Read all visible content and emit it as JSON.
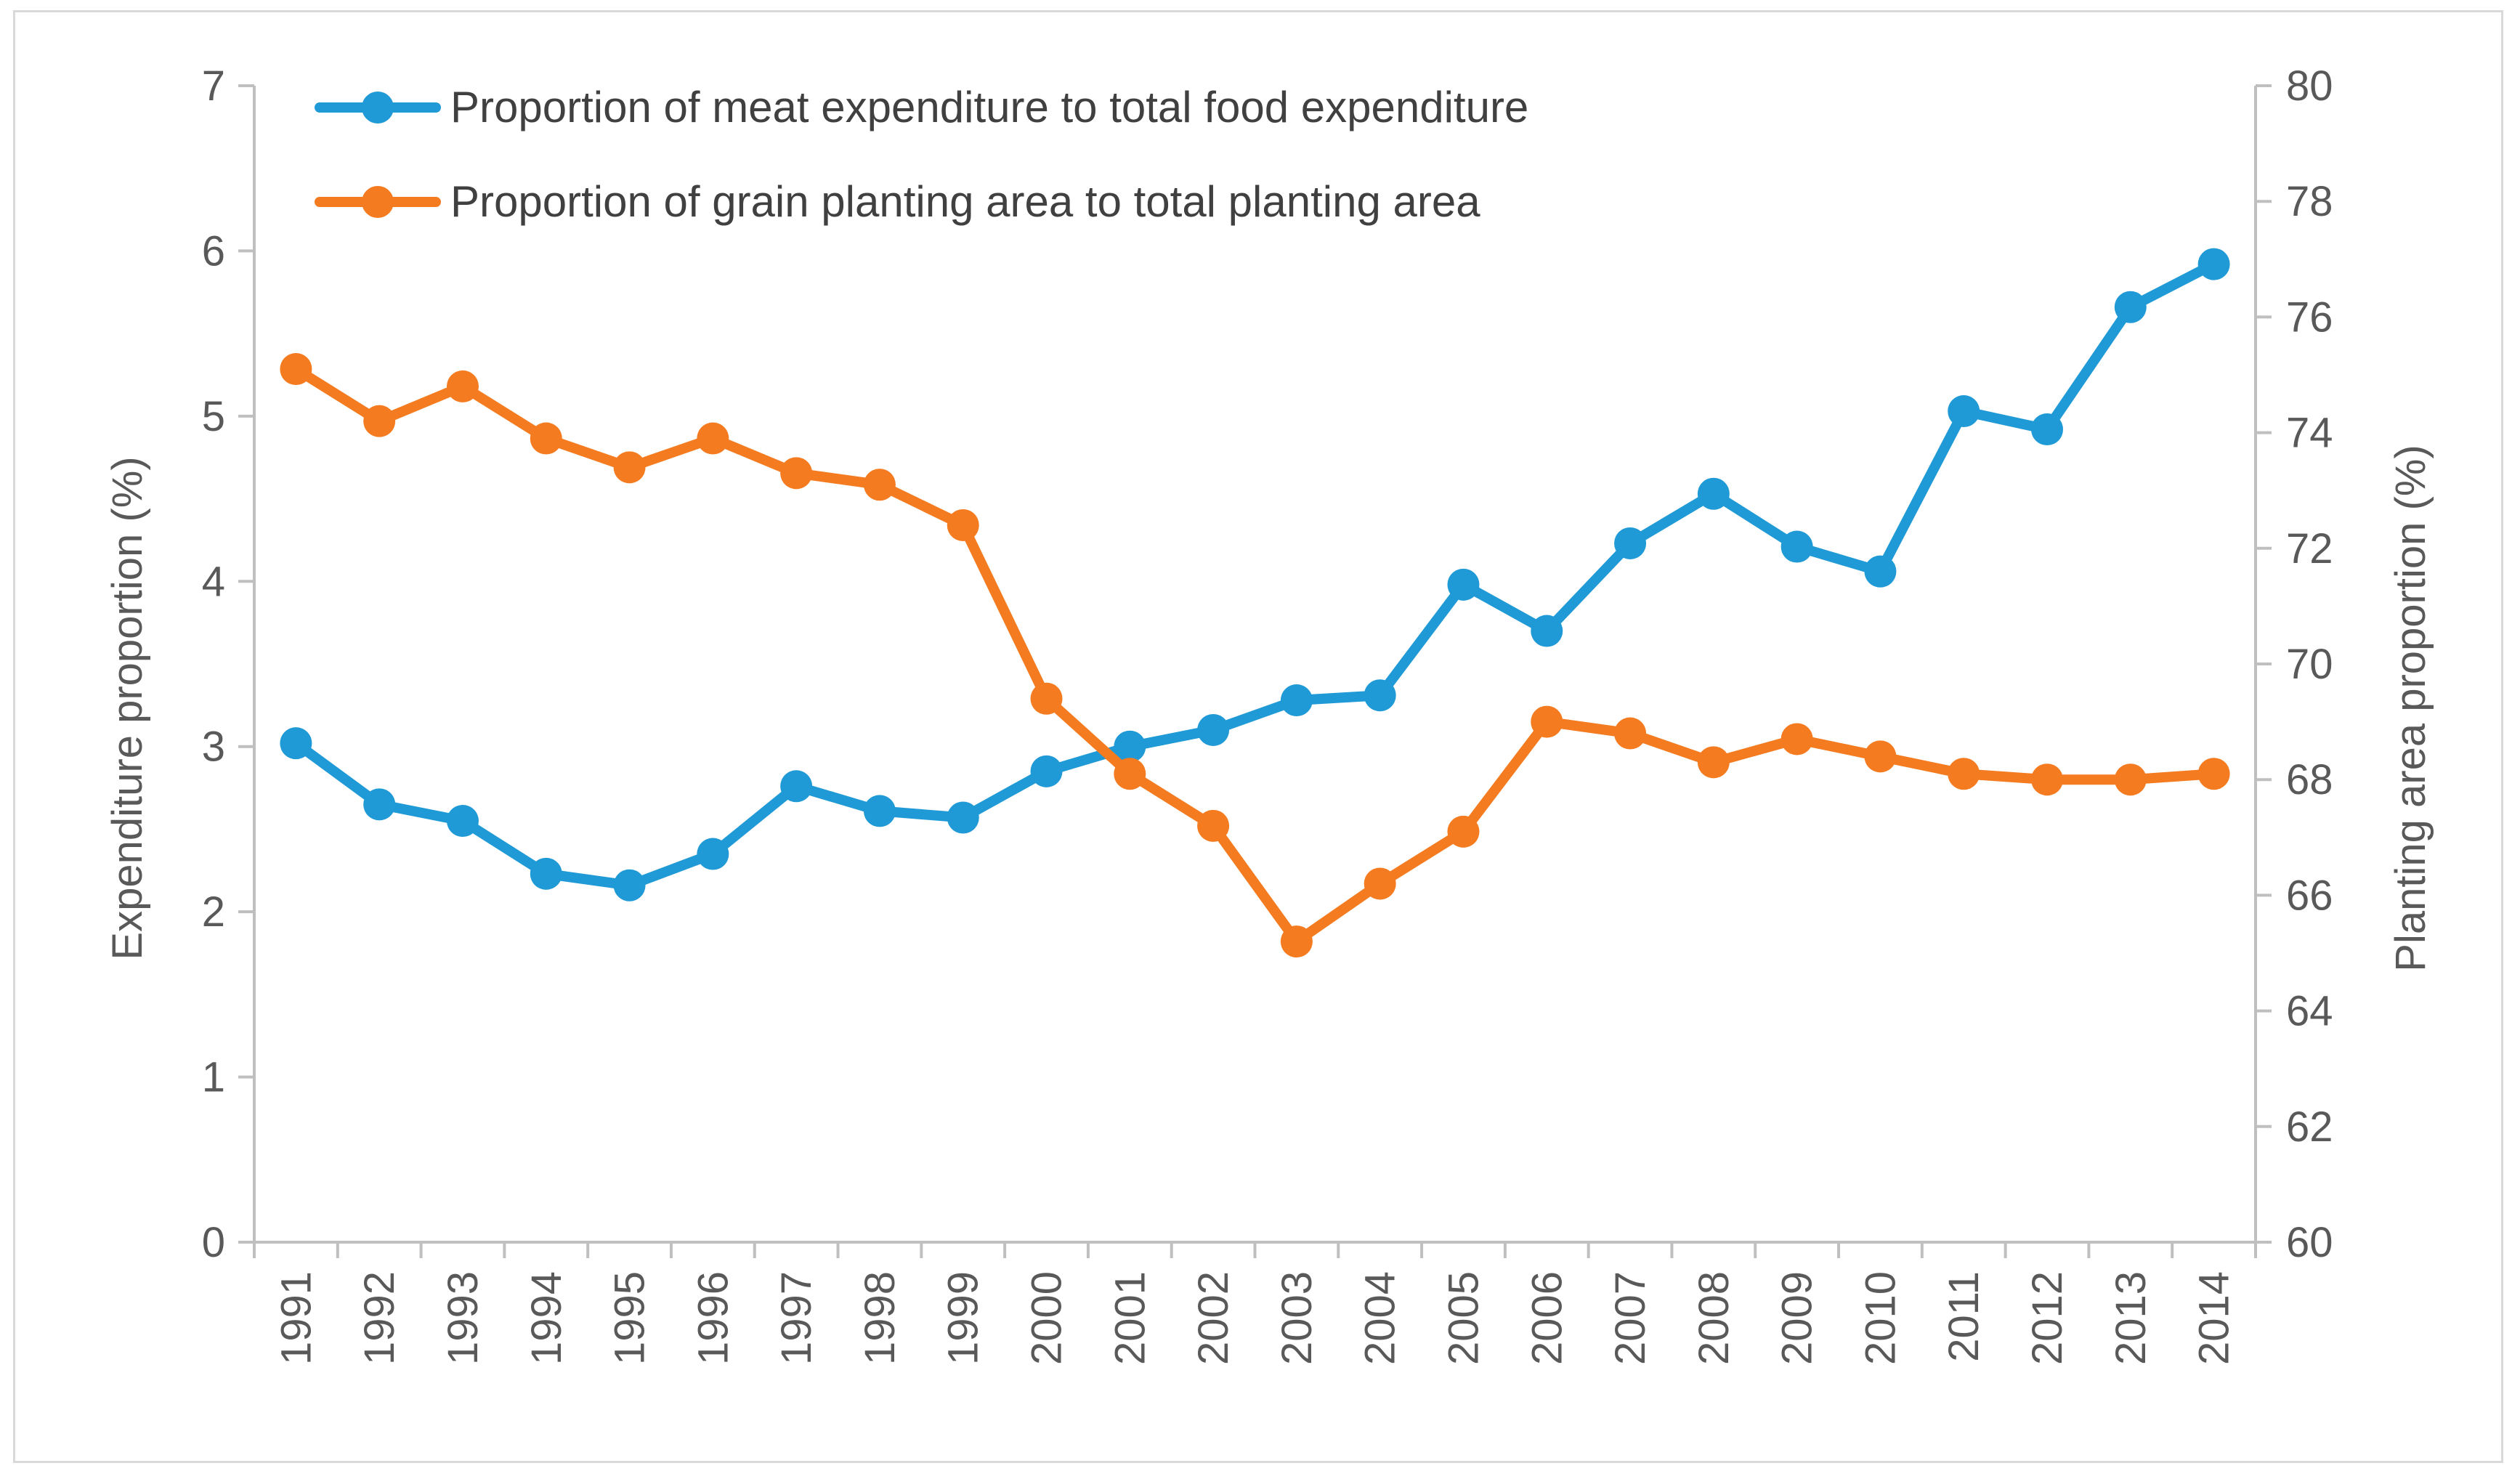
{
  "chart_data": {
    "type": "line",
    "title": "",
    "xlabel": "",
    "ylabel_left": "Expenditure proportion (%)",
    "ylabel_right": "Planting area proportion (%)",
    "ylim_left": [
      0,
      7
    ],
    "ylim_right": [
      60,
      80
    ],
    "yticks_left": [
      "0",
      "1",
      "2",
      "3",
      "4",
      "5",
      "6",
      "7"
    ],
    "yticks_right": [
      "60",
      "62",
      "64",
      "66",
      "68",
      "70",
      "72",
      "74",
      "76",
      "78",
      "80"
    ],
    "grid": false,
    "legend_position": "top-left",
    "categories": [
      "1991",
      "1992",
      "1993",
      "1994",
      "1995",
      "1996",
      "1997",
      "1998",
      "1999",
      "2000",
      "2001",
      "2002",
      "2003",
      "2004",
      "2005",
      "2006",
      "2007",
      "2008",
      "2009",
      "2010",
      "2011",
      "2012",
      "2013",
      "2014"
    ],
    "series": [
      {
        "name": "Proportion of meat expenditure to total food expenditure",
        "axis": "left",
        "color": "#1f9ad6",
        "values": [
          3.02,
          2.65,
          2.55,
          2.23,
          2.16,
          2.35,
          2.76,
          2.61,
          2.57,
          2.85,
          3.0,
          3.1,
          3.28,
          3.31,
          3.98,
          3.7,
          4.23,
          4.53,
          4.21,
          4.06,
          5.03,
          4.92,
          5.66,
          5.92
        ]
      },
      {
        "name": "Proportion of grain planting area to total planting area",
        "axis": "right",
        "color": "#f47b20",
        "values": [
          75.1,
          74.2,
          74.8,
          73.9,
          73.4,
          73.9,
          73.3,
          73.1,
          72.4,
          69.4,
          68.1,
          67.2,
          65.2,
          66.2,
          67.1,
          69.0,
          68.8,
          68.3,
          68.7,
          68.4,
          68.1,
          68.0,
          68.0,
          68.1
        ]
      }
    ]
  }
}
